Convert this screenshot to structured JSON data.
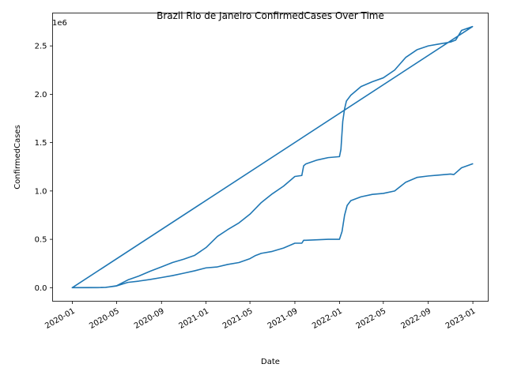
{
  "chart_data": {
    "type": "line",
    "title": "Brazil Rio de Janeiro ConfirmedCases Over Time",
    "xlabel": "Date",
    "ylabel": "ConfirmedCases",
    "offset_label": "1e6",
    "xlim": [
      "2019-11-08",
      "2023-02-12"
    ],
    "ylim": [
      -0.14,
      2.84
    ],
    "x_ticks": [
      "2020-01",
      "2020-05",
      "2020-09",
      "2021-01",
      "2021-05",
      "2021-09",
      "2022-01",
      "2022-05",
      "2022-09",
      "2023-01"
    ],
    "y_ticks": [
      "0.0",
      "0.5",
      "1.0",
      "1.5",
      "2.0",
      "2.5"
    ],
    "y_tick_values": [
      0.0,
      0.5,
      1.0,
      1.5,
      2.0,
      2.5
    ],
    "grid": false,
    "legend": "none",
    "line_color": "#1f77b4",
    "series": [
      {
        "x": [
          "2020-01-01",
          "2020-03-10",
          "2020-04-01",
          "2020-05-01",
          "2020-06-01",
          "2020-07-01",
          "2020-08-01",
          "2020-09-01",
          "2020-10-01",
          "2020-11-01",
          "2020-12-01",
          "2021-01-01",
          "2021-02-01",
          "2021-03-01",
          "2021-04-01",
          "2021-05-01",
          "2021-06-01",
          "2021-07-01",
          "2021-08-01",
          "2021-09-01",
          "2021-09-20",
          "2021-09-25",
          "2021-10-01",
          "2021-11-01",
          "2021-12-01",
          "2022-01-01",
          "2022-01-05",
          "2022-01-10",
          "2022-01-15",
          "2022-01-20",
          "2022-02-01",
          "2022-03-01",
          "2022-04-01",
          "2022-05-01",
          "2022-06-01",
          "2022-07-01",
          "2022-08-01",
          "2022-09-01",
          "2022-10-01",
          "2022-11-01",
          "2022-11-15",
          "2022-12-01",
          "2022-12-31",
          "2020-01-01",
          "2020-04-01",
          "2020-05-01",
          "2020-06-01",
          "2020-07-01",
          "2020-08-01",
          "2020-09-01",
          "2020-10-01",
          "2020-11-01",
          "2020-12-01",
          "2021-01-01",
          "2021-02-01",
          "2021-03-01",
          "2021-04-01",
          "2021-05-01",
          "2021-05-15",
          "2021-06-01",
          "2021-07-01",
          "2021-08-01",
          "2021-09-01",
          "2021-09-20",
          "2021-09-25",
          "2021-10-01",
          "2021-11-01",
          "2021-12-01",
          "2022-01-01",
          "2022-01-08",
          "2022-01-15",
          "2022-01-22",
          "2022-02-01",
          "2022-03-01",
          "2022-04-01",
          "2022-05-01",
          "2022-06-01",
          "2022-07-01",
          "2022-08-01",
          "2022-09-01",
          "2022-10-01",
          "2022-11-01",
          "2022-11-10",
          "2022-12-01",
          "2022-12-31"
        ],
        "y": [
          0.0,
          0.0,
          0.003,
          0.02,
          0.08,
          0.12,
          0.17,
          0.215,
          0.26,
          0.295,
          0.335,
          0.415,
          0.53,
          0.6,
          0.67,
          0.76,
          0.88,
          0.97,
          1.05,
          1.15,
          1.16,
          1.26,
          1.28,
          1.32,
          1.345,
          1.355,
          1.43,
          1.72,
          1.85,
          1.93,
          1.99,
          2.08,
          2.13,
          2.17,
          2.25,
          2.38,
          2.46,
          2.5,
          2.52,
          2.54,
          2.56,
          2.66,
          2.7,
          0.0,
          0.003,
          0.018,
          0.055,
          0.068,
          0.085,
          0.105,
          0.125,
          0.15,
          0.175,
          0.205,
          0.215,
          0.24,
          0.26,
          0.3,
          0.33,
          0.355,
          0.375,
          0.41,
          0.46,
          0.46,
          0.49,
          0.49,
          0.495,
          0.5,
          0.5,
          0.58,
          0.75,
          0.85,
          0.9,
          0.94,
          0.965,
          0.975,
          1.0,
          1.09,
          1.14,
          1.155,
          1.165,
          1.175,
          1.17,
          1.24,
          1.28
        ]
      }
    ]
  }
}
